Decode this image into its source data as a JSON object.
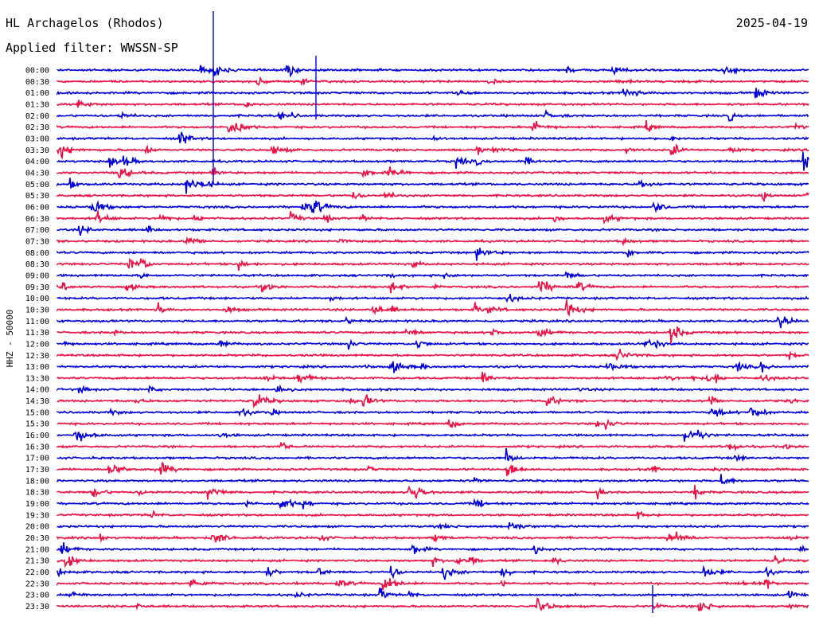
{
  "header": {
    "station": "HL Archagelos (Rhodos)",
    "filter": "Applied filter: WWSSN-SP",
    "date": "2025-04-19"
  },
  "chart_data": {
    "type": "line",
    "title": "HL Archagelos (Rhodos)",
    "channel_label": "HHZ - 50000",
    "row_labels": [
      "00:00",
      "00:30",
      "01:00",
      "01:30",
      "02:00",
      "02:30",
      "03:00",
      "03:30",
      "04:00",
      "04:30",
      "05:00",
      "05:30",
      "06:00",
      "06:30",
      "07:00",
      "07:30",
      "08:00",
      "08:30",
      "09:00",
      "09:30",
      "10:00",
      "10:30",
      "11:00",
      "11:30",
      "12:00",
      "12:30",
      "13:00",
      "13:30",
      "14:00",
      "14:30",
      "15:00",
      "15:30",
      "16:00",
      "16:30",
      "17:00",
      "17:30",
      "18:00",
      "18:30",
      "19:00",
      "19:30",
      "20:00",
      "20:30",
      "21:00",
      "21:30",
      "22:00",
      "22:30",
      "23:00",
      "23:30"
    ],
    "colors": [
      "#0000dd",
      "#ee1144"
    ],
    "grid": false
  }
}
